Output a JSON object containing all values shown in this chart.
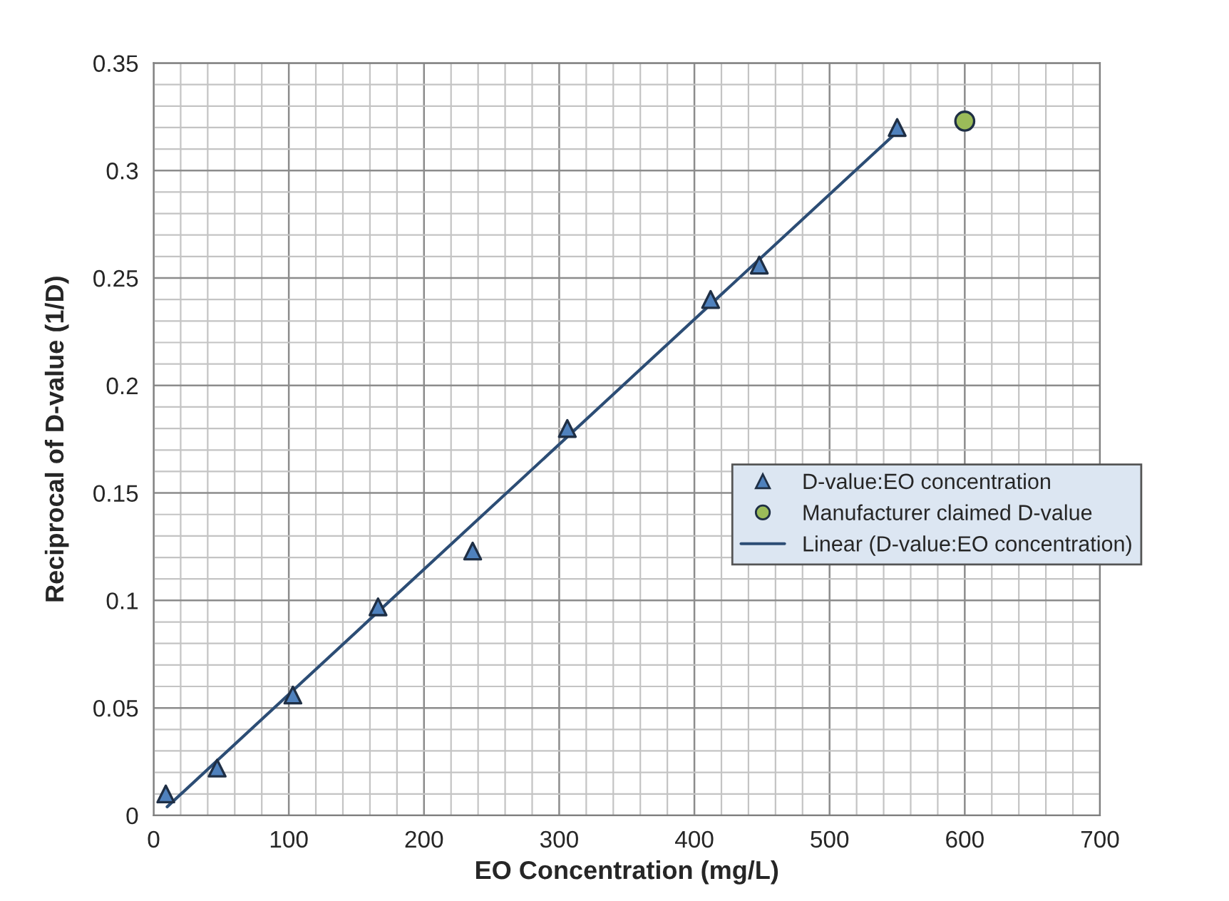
{
  "chart_data": {
    "type": "scatter",
    "xlabel": "EO Concentration (mg/L)",
    "ylabel": "Reciprocal of D-value (1/D)",
    "xlim": [
      0,
      700
    ],
    "xticks": [
      0,
      100,
      200,
      300,
      400,
      500,
      600,
      700
    ],
    "ylim": [
      0,
      0.35
    ],
    "yticks": [
      0,
      0.05,
      0.1,
      0.15,
      0.2,
      0.25,
      0.3,
      0.35
    ],
    "grid": true,
    "legend": "right",
    "series": [
      {
        "name": "D-value:EO concentration",
        "marker": "triangle",
        "color": "#4f81bd",
        "x": [
          9,
          47,
          103,
          166,
          236,
          306,
          412,
          448,
          550
        ],
        "values": [
          0.01,
          0.022,
          0.056,
          0.097,
          0.123,
          0.18,
          0.24,
          0.256,
          0.32
        ]
      },
      {
        "name": "Manufacturer claimed D-value",
        "marker": "circle",
        "color": "#9bbb59",
        "x": [
          600
        ],
        "values": [
          0.323
        ]
      },
      {
        "name": "Linear (D-value:EO concentration)",
        "type": "line",
        "marker": "none",
        "line_style": "solid",
        "color": "#2c4d75",
        "x": [
          10,
          550
        ],
        "values": [
          0.004,
          0.318
        ]
      }
    ]
  }
}
